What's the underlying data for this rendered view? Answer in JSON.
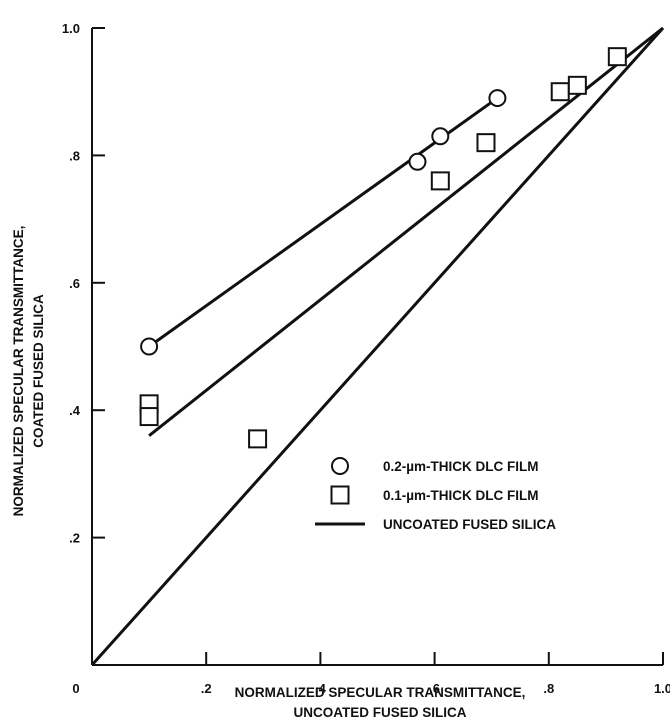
{
  "chart_data": {
    "type": "scatter",
    "xlabel_lines": [
      "NORMALIZED SPECULAR TRANSMITTANCE,",
      "UNCOATED FUSED SILICA"
    ],
    "ylabel_lines": [
      "NORMALIZED SPECULAR TRANSMITTANCE,",
      "COATED FUSED SILICA"
    ],
    "xlim": [
      0,
      1.0
    ],
    "ylim": [
      0,
      1.0
    ],
    "origin_label": "0",
    "x_ticks": [
      {
        "value": 0.2,
        "label": ".2"
      },
      {
        "value": 0.4,
        "label": ".4"
      },
      {
        "value": 0.6,
        "label": ".6"
      },
      {
        "value": 0.8,
        "label": ".8"
      },
      {
        "value": 1.0,
        "label": "1.0"
      }
    ],
    "y_ticks": [
      {
        "value": 0.2,
        "label": ".2"
      },
      {
        "value": 0.4,
        "label": ".4"
      },
      {
        "value": 0.6,
        "label": ".6"
      },
      {
        "value": 0.8,
        "label": ".8"
      },
      {
        "value": 1.0,
        "label": "1.0"
      }
    ],
    "grid": false,
    "legend_position": "lower-right",
    "series": [
      {
        "name": "0.2-µm-THICK DLC FILM",
        "marker": "circle",
        "points": [
          [
            0.1,
            0.5
          ],
          [
            0.57,
            0.79
          ],
          [
            0.61,
            0.83
          ],
          [
            0.71,
            0.89
          ]
        ],
        "fit_line": [
          [
            0.1,
            0.5
          ],
          [
            0.71,
            0.89
          ]
        ]
      },
      {
        "name": "0.1-µm-THICK DLC FILM",
        "marker": "square",
        "points": [
          [
            0.1,
            0.41
          ],
          [
            0.1,
            0.39
          ],
          [
            0.29,
            0.355
          ],
          [
            0.61,
            0.76
          ],
          [
            0.69,
            0.82
          ],
          [
            0.82,
            0.9
          ],
          [
            0.85,
            0.91
          ],
          [
            0.92,
            0.955
          ]
        ],
        "fit_line": [
          [
            0.1,
            0.36
          ],
          [
            1.0,
            1.0
          ]
        ]
      },
      {
        "name": "UNCOATED FUSED SILICA",
        "marker": "line",
        "points": [],
        "fit_line": [
          [
            0,
            0
          ],
          [
            1.0,
            1.0
          ]
        ]
      }
    ]
  }
}
